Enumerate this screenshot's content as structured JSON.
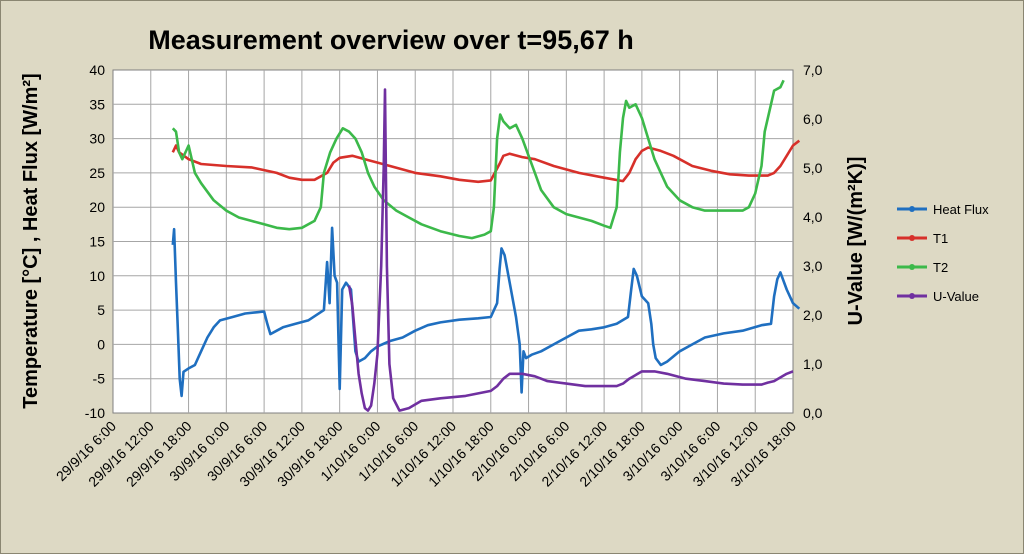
{
  "chart_data": {
    "type": "line",
    "title": "Measurement overview  over t=95,67 h",
    "ylabel": "Temperature [°C] , Heat Flux [W/m²]",
    "y2label": "U-Value [W/(m²K)]",
    "ylim": [
      -10,
      40
    ],
    "y2lim": [
      0,
      7
    ],
    "yticks": [
      "-10",
      "-5",
      "0",
      "5",
      "10",
      "15",
      "20",
      "25",
      "30",
      "35",
      "40"
    ],
    "y2ticks": [
      "0,0",
      "1,0",
      "2,0",
      "3,0",
      "4,0",
      "5,0",
      "6,0",
      "7,0"
    ],
    "xticks": [
      "29/9/16 6:00",
      "29/9/16 12:00",
      "29/9/16 18:00",
      "30/9/16 0:00",
      "30/9/16 6:00",
      "30/9/16 12:00",
      "30/9/16 18:00",
      "1/10/16 0:00",
      "1/10/16 6:00",
      "1/10/16 12:00",
      "1/10/16 18:00",
      "2/10/16 0:00",
      "2/10/16 6:00",
      "2/10/16 12:00",
      "2/10/16 18:00",
      "3/10/16 0:00",
      "3/10/16 6:00",
      "3/10/16 12:00",
      "3/10/16 18:00"
    ],
    "x_unit": "hours after 29/9/16 6:00",
    "xlim": [
      0,
      108
    ],
    "grid": true,
    "legend_position": "right",
    "series": [
      {
        "name": "Heat Flux",
        "color": "#1f6fc0",
        "axis": "left",
        "points": [
          [
            9.5,
            14.5
          ],
          [
            9.7,
            16.8
          ],
          [
            10,
            9
          ],
          [
            10.3,
            2
          ],
          [
            10.6,
            -5
          ],
          [
            10.9,
            -7.5
          ],
          [
            11.2,
            -4
          ],
          [
            12,
            -3.5
          ],
          [
            13,
            -3
          ],
          [
            13.5,
            -2
          ],
          [
            14,
            -1
          ],
          [
            15,
            1
          ],
          [
            16,
            2.5
          ],
          [
            17,
            3.5
          ],
          [
            19,
            4
          ],
          [
            21,
            4.5
          ],
          [
            23,
            4.7
          ],
          [
            24,
            4.8
          ],
          [
            24.5,
            3
          ],
          [
            25,
            1.5
          ],
          [
            26,
            2
          ],
          [
            27,
            2.5
          ],
          [
            29,
            3
          ],
          [
            31,
            3.5
          ],
          [
            33.5,
            5
          ],
          [
            34,
            12
          ],
          [
            34.4,
            6
          ],
          [
            34.8,
            17
          ],
          [
            35.2,
            10
          ],
          [
            35.6,
            9
          ],
          [
            36,
            -6.5
          ],
          [
            36.4,
            8
          ],
          [
            37,
            9
          ],
          [
            37.8,
            8
          ],
          [
            38.5,
            -1
          ],
          [
            39,
            -2.5
          ],
          [
            40,
            -2
          ],
          [
            41,
            -1
          ],
          [
            42,
            -0.3
          ],
          [
            44,
            0.5
          ],
          [
            46,
            1
          ],
          [
            48,
            2
          ],
          [
            50,
            2.8
          ],
          [
            52,
            3.2
          ],
          [
            55,
            3.6
          ],
          [
            58,
            3.8
          ],
          [
            60,
            4
          ],
          [
            61,
            6
          ],
          [
            61.4,
            11
          ],
          [
            61.7,
            14
          ],
          [
            62.2,
            13
          ],
          [
            63,
            9
          ],
          [
            64,
            4
          ],
          [
            64.6,
            0
          ],
          [
            64.9,
            -7
          ],
          [
            65.2,
            -1
          ],
          [
            65.6,
            -2
          ],
          [
            66.5,
            -1.5
          ],
          [
            68,
            -1
          ],
          [
            70,
            0
          ],
          [
            72,
            1
          ],
          [
            74,
            2
          ],
          [
            76,
            2.2
          ],
          [
            78,
            2.5
          ],
          [
            80,
            3
          ],
          [
            81.8,
            4
          ],
          [
            82.3,
            8
          ],
          [
            82.7,
            11
          ],
          [
            83.2,
            10
          ],
          [
            84,
            7
          ],
          [
            85,
            6
          ],
          [
            85.5,
            3
          ],
          [
            85.8,
            0
          ],
          [
            86.2,
            -2
          ],
          [
            87,
            -3
          ],
          [
            88,
            -2.5
          ],
          [
            90,
            -1
          ],
          [
            92,
            0
          ],
          [
            94,
            1
          ],
          [
            97,
            1.6
          ],
          [
            100,
            2
          ],
          [
            103,
            2.8
          ],
          [
            104.5,
            3
          ],
          [
            105,
            7
          ],
          [
            105.5,
            9.5
          ],
          [
            106,
            10.5
          ],
          [
            107,
            8
          ],
          [
            108,
            6
          ],
          [
            109,
            5.2
          ]
        ]
      },
      {
        "name": "T1",
        "color": "#d7302a",
        "axis": "left",
        "points": [
          [
            9.5,
            28
          ],
          [
            10,
            29
          ],
          [
            10.5,
            28
          ],
          [
            12,
            27
          ],
          [
            14,
            26.3
          ],
          [
            18,
            26
          ],
          [
            22,
            25.8
          ],
          [
            26,
            25
          ],
          [
            28,
            24.3
          ],
          [
            30,
            24
          ],
          [
            32,
            24
          ],
          [
            34,
            25
          ],
          [
            35,
            26.5
          ],
          [
            36,
            27.2
          ],
          [
            38,
            27.5
          ],
          [
            40,
            27
          ],
          [
            44,
            26
          ],
          [
            48,
            25
          ],
          [
            52,
            24.5
          ],
          [
            55,
            24
          ],
          [
            58,
            23.7
          ],
          [
            60,
            23.9
          ],
          [
            61.5,
            26.5
          ],
          [
            62,
            27.5
          ],
          [
            63,
            27.8
          ],
          [
            65,
            27.3
          ],
          [
            67,
            27
          ],
          [
            70,
            26
          ],
          [
            74,
            25
          ],
          [
            78,
            24.3
          ],
          [
            81,
            23.8
          ],
          [
            82,
            25
          ],
          [
            83,
            27
          ],
          [
            84,
            28.2
          ],
          [
            85,
            28.7
          ],
          [
            87,
            28.2
          ],
          [
            89,
            27.5
          ],
          [
            92,
            26
          ],
          [
            95,
            25.3
          ],
          [
            98,
            24.8
          ],
          [
            101,
            24.6
          ],
          [
            104,
            24.6
          ],
          [
            105,
            25
          ],
          [
            106,
            26
          ],
          [
            107,
            27.5
          ],
          [
            108,
            29
          ],
          [
            109,
            29.7
          ]
        ]
      },
      {
        "name": "T2",
        "color": "#3cb94a",
        "axis": "left",
        "points": [
          [
            9.5,
            31.5
          ],
          [
            10,
            31
          ],
          [
            10.5,
            28
          ],
          [
            11,
            27
          ],
          [
            12,
            29
          ],
          [
            13,
            25
          ],
          [
            14,
            23.5
          ],
          [
            16,
            21
          ],
          [
            18,
            19.5
          ],
          [
            20,
            18.5
          ],
          [
            22,
            18
          ],
          [
            24,
            17.5
          ],
          [
            26,
            17
          ],
          [
            28,
            16.8
          ],
          [
            30,
            17
          ],
          [
            32,
            18
          ],
          [
            33,
            20
          ],
          [
            33.5,
            25
          ],
          [
            34.5,
            28
          ],
          [
            35.5,
            30
          ],
          [
            36.5,
            31.5
          ],
          [
            37.5,
            31
          ],
          [
            38.5,
            30
          ],
          [
            39.5,
            28
          ],
          [
            40.5,
            25
          ],
          [
            41.5,
            23
          ],
          [
            43,
            21
          ],
          [
            45,
            19.5
          ],
          [
            47,
            18.5
          ],
          [
            49,
            17.5
          ],
          [
            52,
            16.5
          ],
          [
            55,
            15.8
          ],
          [
            57,
            15.5
          ],
          [
            59,
            16
          ],
          [
            60,
            16.5
          ],
          [
            60.5,
            20
          ],
          [
            61,
            30
          ],
          [
            61.5,
            33.5
          ],
          [
            62,
            32.5
          ],
          [
            63,
            31.5
          ],
          [
            64,
            32
          ],
          [
            65,
            30
          ],
          [
            66,
            27.5
          ],
          [
            67,
            25
          ],
          [
            68,
            22.5
          ],
          [
            70,
            20
          ],
          [
            72,
            19
          ],
          [
            74,
            18.5
          ],
          [
            76,
            18
          ],
          [
            78,
            17.3
          ],
          [
            79,
            17
          ],
          [
            80,
            20
          ],
          [
            80.5,
            28
          ],
          [
            81,
            33
          ],
          [
            81.5,
            35.5
          ],
          [
            82,
            34.5
          ],
          [
            83,
            35
          ],
          [
            84,
            33
          ],
          [
            85,
            30
          ],
          [
            86,
            27
          ],
          [
            87,
            25
          ],
          [
            88,
            23
          ],
          [
            90,
            21
          ],
          [
            92,
            20
          ],
          [
            94,
            19.5
          ],
          [
            96,
            19.5
          ],
          [
            98,
            19.5
          ],
          [
            100,
            19.5
          ],
          [
            101,
            20
          ],
          [
            102,
            22
          ],
          [
            103,
            26
          ],
          [
            103.5,
            31
          ],
          [
            104.5,
            35
          ],
          [
            105,
            37
          ],
          [
            106,
            37.5
          ],
          [
            106.5,
            38.5
          ]
        ]
      },
      {
        "name": "U-Value",
        "color": "#7030a0",
        "axis": "right",
        "points": [
          [
            37.5,
            2.6
          ],
          [
            38,
            2.2
          ],
          [
            38.5,
            1.5
          ],
          [
            39,
            0.8
          ],
          [
            39.5,
            0.4
          ],
          [
            40,
            0.1
          ],
          [
            40.5,
            0.05
          ],
          [
            41,
            0.15
          ],
          [
            41.5,
            0.6
          ],
          [
            42,
            1.2
          ],
          [
            42.6,
            3
          ],
          [
            43,
            5
          ],
          [
            43.2,
            6.6
          ],
          [
            43.5,
            3
          ],
          [
            43.9,
            1
          ],
          [
            44.5,
            0.3
          ],
          [
            45.5,
            0.05
          ],
          [
            47,
            0.1
          ],
          [
            49,
            0.25
          ],
          [
            52,
            0.3
          ],
          [
            56,
            0.35
          ],
          [
            58,
            0.4
          ],
          [
            60,
            0.45
          ],
          [
            61,
            0.55
          ],
          [
            62,
            0.7
          ],
          [
            63,
            0.8
          ],
          [
            65,
            0.8
          ],
          [
            67,
            0.75
          ],
          [
            69,
            0.65
          ],
          [
            72,
            0.6
          ],
          [
            75,
            0.55
          ],
          [
            78,
            0.55
          ],
          [
            80,
            0.55
          ],
          [
            81,
            0.6
          ],
          [
            82,
            0.7
          ],
          [
            84,
            0.85
          ],
          [
            86,
            0.85
          ],
          [
            88,
            0.8
          ],
          [
            91,
            0.7
          ],
          [
            94,
            0.65
          ],
          [
            97,
            0.6
          ],
          [
            100,
            0.58
          ],
          [
            103,
            0.58
          ],
          [
            104,
            0.62
          ],
          [
            105,
            0.65
          ],
          [
            107,
            0.8
          ],
          [
            108,
            0.85
          ]
        ]
      }
    ]
  }
}
